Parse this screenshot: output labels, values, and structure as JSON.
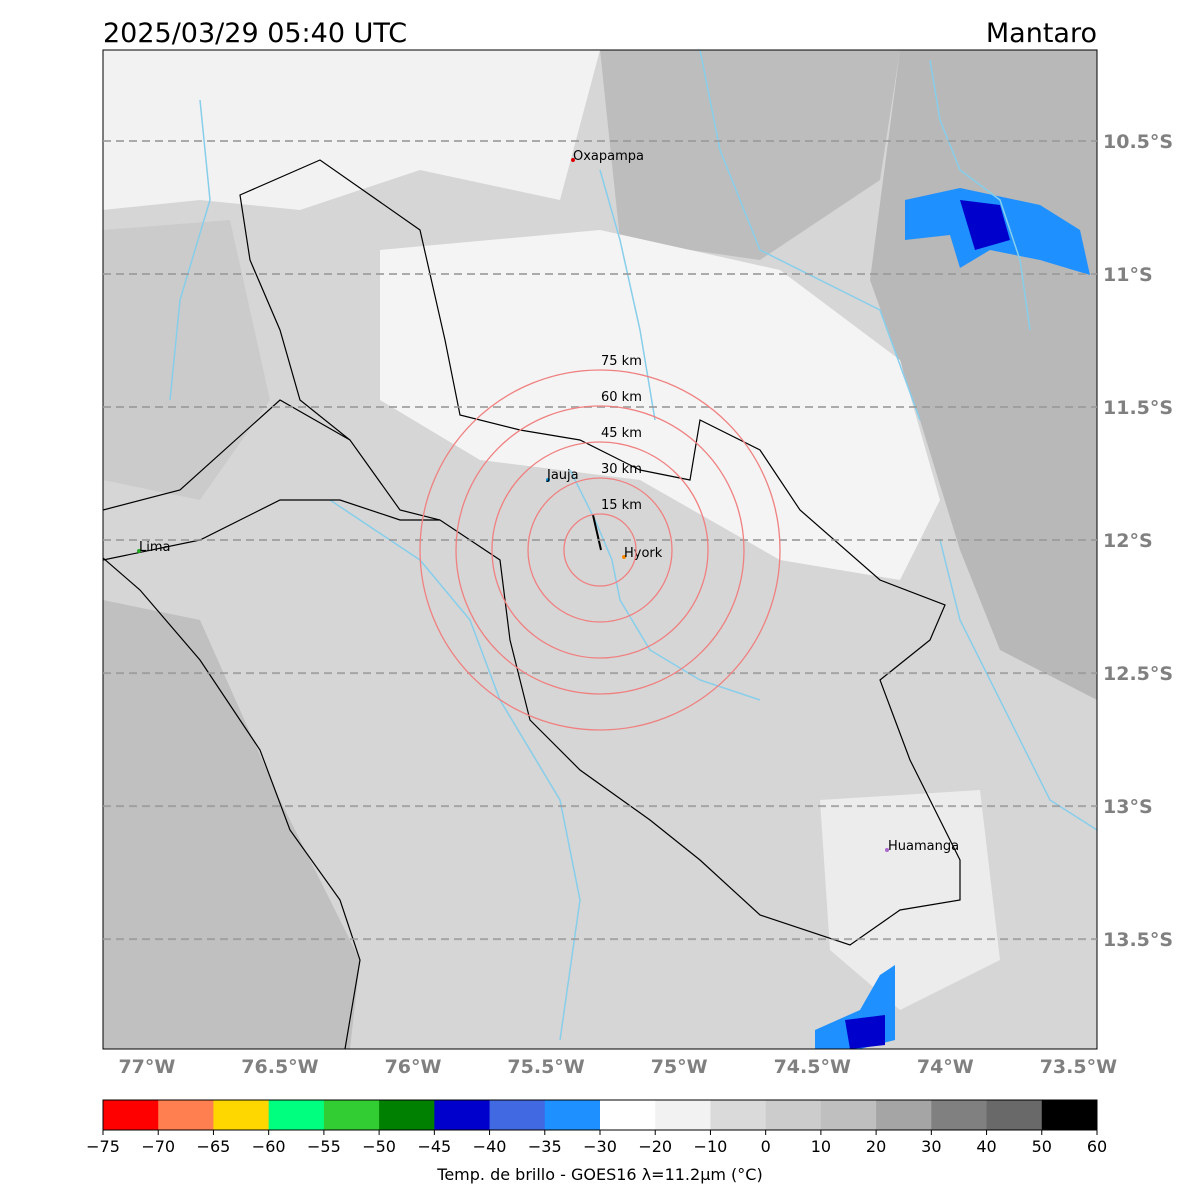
{
  "header": {
    "title": "2025/03/29 05:40 UTC",
    "region": "Mantaro"
  },
  "map": {
    "xlim": [
      -77.165,
      -73.43
    ],
    "ylim": [
      -13.913,
      -10.158
    ],
    "xticks": [
      {
        "value": -77,
        "label": "77°W"
      },
      {
        "value": -76.5,
        "label": "76.5°W"
      },
      {
        "value": -76,
        "label": "76°W"
      },
      {
        "value": -75.5,
        "label": "75.5°W"
      },
      {
        "value": -75,
        "label": "75°W"
      },
      {
        "value": -74.5,
        "label": "74.5°W"
      },
      {
        "value": -74,
        "label": "74°W"
      },
      {
        "value": -73.5,
        "label": "73.5°W"
      }
    ],
    "yticks": [
      {
        "value": -10.5,
        "label": "10.5°S"
      },
      {
        "value": -11,
        "label": "11°S"
      },
      {
        "value": -11.5,
        "label": "11.5°S"
      },
      {
        "value": -12,
        "label": "12°S"
      },
      {
        "value": -12.5,
        "label": "12.5°S"
      },
      {
        "value": -13,
        "label": "13°S"
      },
      {
        "value": -13.5,
        "label": "13.5°S"
      }
    ],
    "places": [
      "Oxapampa",
      "Jauja",
      "Hyork",
      "Lima",
      "Huamanga"
    ],
    "rings": [
      {
        "value": 15,
        "label": "15 km"
      },
      {
        "value": 30,
        "label": "30 km"
      },
      {
        "value": 45,
        "label": "45 km"
      },
      {
        "value": 60,
        "label": "60 km"
      },
      {
        "value": 75,
        "label": "75 km"
      }
    ]
  },
  "colorbar": {
    "ticks": [
      {
        "value": -75,
        "label": "−75"
      },
      {
        "value": -70,
        "label": "−70"
      },
      {
        "value": -65,
        "label": "−65"
      },
      {
        "value": -60,
        "label": "−60"
      },
      {
        "value": -55,
        "label": "−55"
      },
      {
        "value": -50,
        "label": "−50"
      },
      {
        "value": -45,
        "label": "−45"
      },
      {
        "value": -40,
        "label": "−40"
      },
      {
        "value": -35,
        "label": "−35"
      },
      {
        "value": -30,
        "label": "−30"
      },
      {
        "value": -20,
        "label": "−20"
      },
      {
        "value": -10,
        "label": "−10"
      },
      0,
      10,
      20,
      30,
      40,
      50,
      60
    ],
    "colors": [
      "#ff0000",
      "#ff7f50",
      "#ffd700",
      "#00ff7f",
      "#32cd32",
      "#008000",
      "#0000cd",
      "#4169e1",
      "#1e90ff",
      "#ffffff",
      "#f2f2f2",
      "#dadada",
      "#cccccc",
      "#bfbfbf",
      "#a5a5a5",
      "#808080",
      "#696969",
      "#000000"
    ],
    "label": "Temp. de brillo - GOES16 λ=11.2μm (°C)"
  }
}
